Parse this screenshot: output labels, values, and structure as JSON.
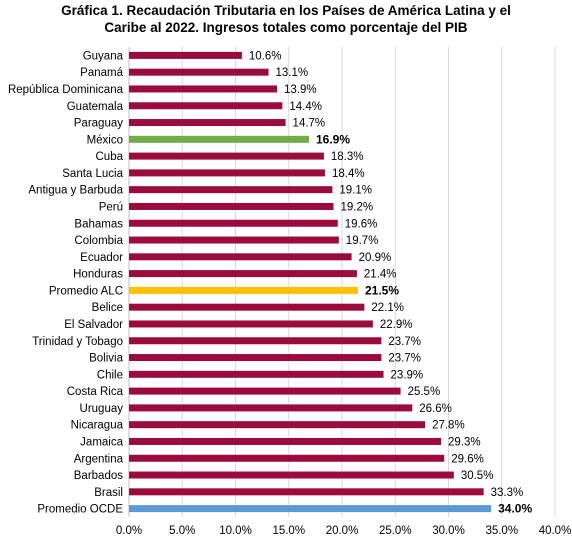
{
  "chart_data": {
    "type": "bar",
    "orientation": "horizontal",
    "title": "Gráfica 1. Recaudación Tributaria en los Países de América Latina y el Caribe al 2022. Ingresos totales como porcentaje del PIB",
    "title_lines": [
      "Gráfica 1. Recaudación Tributaria en los Países de América Latina y el",
      "Caribe al 2022. Ingresos totales como porcentaje del PIB"
    ],
    "xlabel": "",
    "ylabel": "",
    "xlim": [
      0,
      40
    ],
    "x_ticks": [
      "0.0%",
      "5.0%",
      "10.0%",
      "15.0%",
      "20.0%",
      "25.0%",
      "30.0%",
      "35.0%",
      "40.0%"
    ],
    "grid": "vertical",
    "legend": "none",
    "colors": {
      "default": "#9b0b3b",
      "mexico": "#70ad47",
      "alc": "#ffc000",
      "ocde": "#5b9bd5"
    },
    "categories": [
      "Guyana",
      "Panamá",
      "República Dominicana",
      "Guatemala",
      "Paraguay",
      "México",
      "Cuba",
      "Santa Lucia",
      "Antigua y Barbuda",
      "Perú",
      "Bahamas",
      "Colombia",
      "Ecuador",
      "Honduras",
      "Promedio ALC",
      "Belice",
      "El Salvador",
      "Trinidad y Tobago",
      "Bolivia",
      "Chile",
      "Costa Rica",
      "Uruguay",
      "Nicaragua",
      "Jamaica",
      "Argentina",
      "Barbados",
      "Brasil",
      "Promedio OCDE"
    ],
    "values": [
      10.6,
      13.1,
      13.9,
      14.4,
      14.7,
      16.9,
      18.3,
      18.4,
      19.1,
      19.2,
      19.6,
      19.7,
      20.9,
      21.4,
      21.5,
      22.1,
      22.9,
      23.7,
      23.7,
      23.9,
      25.5,
      26.6,
      27.8,
      29.3,
      29.6,
      30.5,
      33.3,
      34.0
    ],
    "labels": [
      "10.6%",
      "13.1%",
      "13.9%",
      "14.4%",
      "14.7%",
      "16.9%",
      "18.3%",
      "18.4%",
      "19.1%",
      "19.2%",
      "19.6%",
      "19.7%",
      "20.9%",
      "21.4%",
      "21.5%",
      "22.1%",
      "22.9%",
      "23.7%",
      "23.7%",
      "23.9%",
      "25.5%",
      "26.6%",
      "27.8%",
      "29.3%",
      "29.6%",
      "30.5%",
      "33.3%",
      "34.0%"
    ],
    "highlights": {
      "México": "mexico",
      "Promedio ALC": "alc",
      "Promedio OCDE": "ocde"
    }
  }
}
